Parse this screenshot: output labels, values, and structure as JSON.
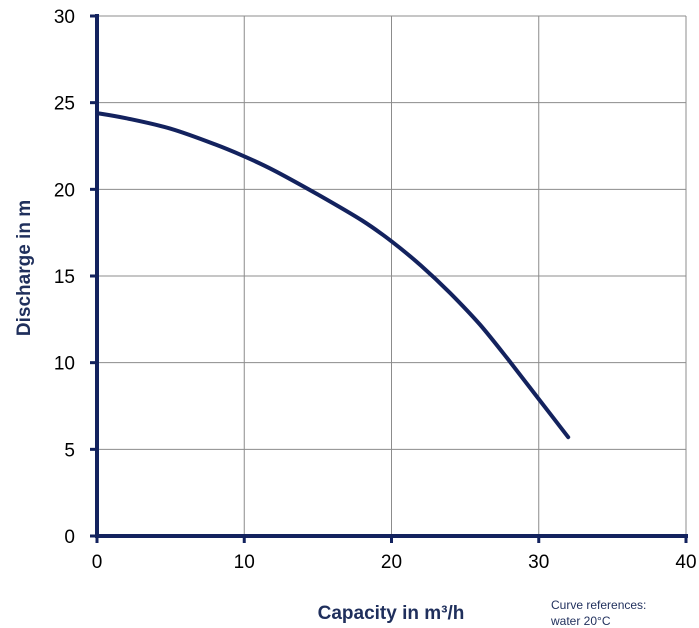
{
  "chart_data": {
    "type": "line",
    "title": "",
    "xlabel": "Capacity in m³/h",
    "ylabel": "Discharge in m",
    "xlim": [
      0,
      40
    ],
    "ylim": [
      0,
      30
    ],
    "x_ticks": [
      "0",
      "10",
      "20",
      "30",
      "40"
    ],
    "y_ticks": [
      "0",
      "5",
      "10",
      "15",
      "20",
      "25",
      "30"
    ],
    "grid": true,
    "series": [
      {
        "x": [
          0,
          2,
          5,
          8,
          10,
          12,
          15,
          18,
          20,
          22,
          24,
          26,
          28,
          30,
          32
        ],
        "y": [
          24.4,
          24.1,
          23.5,
          22.6,
          21.9,
          21.1,
          19.7,
          18.2,
          17.0,
          15.6,
          14.0,
          12.2,
          10.1,
          7.9,
          5.7
        ],
        "color": "#13225e"
      }
    ],
    "annotation": {
      "line1": "Curve references:",
      "line2": "water 20°C"
    }
  }
}
